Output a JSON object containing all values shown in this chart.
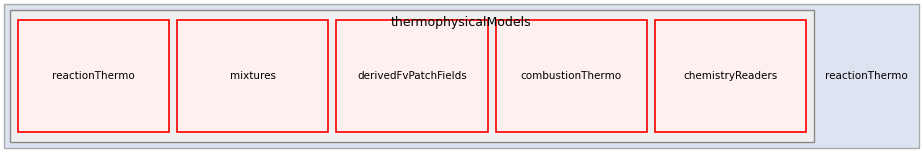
{
  "title": "thermophysicalModels",
  "outer_bg": "#dde3f0",
  "outer_edge": "#aaaaaa",
  "inner_bg": "#efefef",
  "inner_edge": "#888888",
  "node_bg": "#fff0f0",
  "node_edge": "#ff0000",
  "plain_label": "reactionThermo",
  "nodes": [
    "reactionThermo",
    "mixtures",
    "derivedFvPatchFields",
    "combustionThermo",
    "chemistryReaders"
  ],
  "fig_w": 9.23,
  "fig_h": 1.52,
  "dpi": 100
}
